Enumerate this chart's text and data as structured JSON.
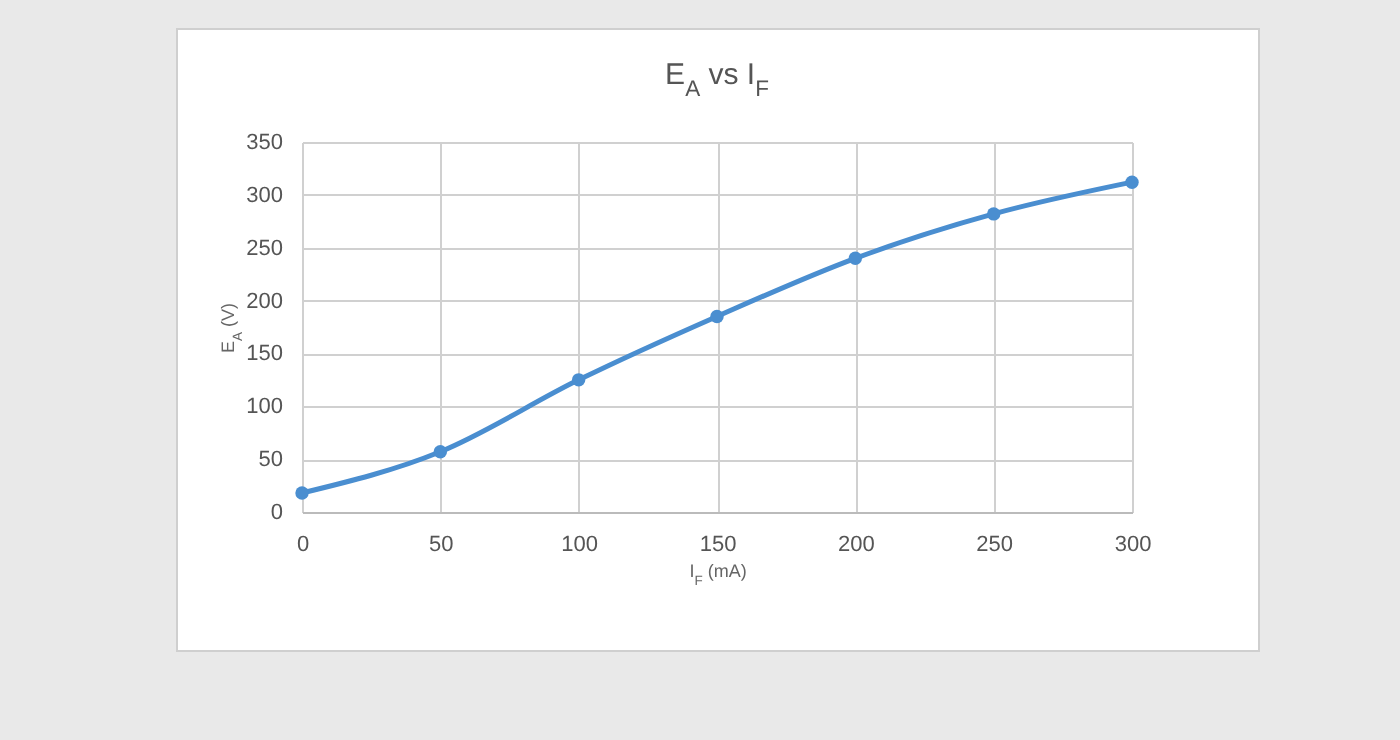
{
  "chart_data": {
    "type": "line",
    "title": "E$_{A}$ vs I$_{F}$",
    "xlabel": "I$_{F}$ (mA)",
    "ylabel": "E$_{A}$ (V)",
    "x": [
      0,
      50,
      100,
      150,
      200,
      250,
      300
    ],
    "series": [
      {
        "color": "#4a8ed0",
        "values": [
          18,
          57,
          125,
          185,
          240,
          282,
          312
        ]
      }
    ],
    "xlim": [
      0,
      300
    ],
    "xticks": [
      0,
      50,
      100,
      150,
      200,
      250,
      300
    ],
    "ylim": [
      0,
      350
    ],
    "yticks": [
      0,
      50,
      100,
      150,
      200,
      250,
      300,
      350
    ],
    "grid": true,
    "marker": "circle",
    "line_style": "solid",
    "legend": false
  }
}
